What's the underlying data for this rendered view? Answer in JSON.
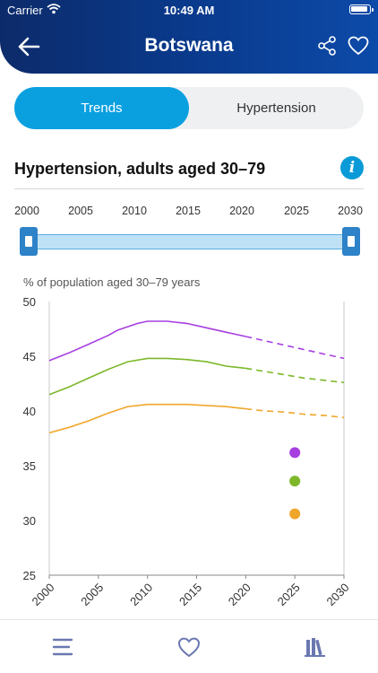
{
  "status_bar": {
    "carrier": "Carrier",
    "time": "10:49 AM"
  },
  "header": {
    "title": "Botswana",
    "back_icon": "arrow-left-icon",
    "share_icon": "share-icon",
    "favorite_icon": "heart-icon"
  },
  "tabs": [
    {
      "label": "Trends",
      "active": true
    },
    {
      "label": "Hypertension",
      "active": false
    }
  ],
  "section": {
    "title": "Hypertension, adults aged 30–79",
    "info_icon": "info-icon",
    "info_label": "i"
  },
  "range_slider": {
    "labels": [
      "2000",
      "2005",
      "2010",
      "2015",
      "2020",
      "2025",
      "2030"
    ],
    "start": 2000,
    "end": 2030
  },
  "chart_data": {
    "type": "line",
    "ylabel": "% of population aged 30–79 years",
    "xlim": [
      2000,
      2030
    ],
    "ylim": [
      25,
      50
    ],
    "x_ticks": [
      2000,
      2005,
      2010,
      2015,
      2020,
      2025,
      2030
    ],
    "y_ticks": [
      25,
      30,
      35,
      40,
      45,
      50
    ],
    "series": [
      {
        "color": "#a63ee0",
        "observed": [
          [
            2000,
            44.6
          ],
          [
            2002,
            45.3
          ],
          [
            2004,
            46.1
          ],
          [
            2006,
            46.9
          ],
          [
            2007,
            47.4
          ],
          [
            2009,
            48.0
          ],
          [
            2010,
            48.2
          ],
          [
            2012,
            48.2
          ],
          [
            2014,
            48.0
          ],
          [
            2016,
            47.6
          ],
          [
            2018,
            47.2
          ],
          [
            2020,
            46.8
          ]
        ],
        "projected": [
          [
            2020,
            46.8
          ],
          [
            2022,
            46.4
          ],
          [
            2024,
            46.0
          ],
          [
            2026,
            45.6
          ],
          [
            2028,
            45.2
          ],
          [
            2030,
            44.8
          ]
        ],
        "target_2025": 36.2
      },
      {
        "color": "#7cb82a",
        "observed": [
          [
            2000,
            41.5
          ],
          [
            2002,
            42.2
          ],
          [
            2004,
            43.0
          ],
          [
            2006,
            43.8
          ],
          [
            2008,
            44.5
          ],
          [
            2010,
            44.8
          ],
          [
            2012,
            44.8
          ],
          [
            2014,
            44.7
          ],
          [
            2016,
            44.5
          ],
          [
            2018,
            44.1
          ],
          [
            2020,
            43.9
          ]
        ],
        "projected": [
          [
            2020,
            43.9
          ],
          [
            2022,
            43.6
          ],
          [
            2024,
            43.3
          ],
          [
            2026,
            43.0
          ],
          [
            2028,
            42.8
          ],
          [
            2030,
            42.6
          ]
        ],
        "target_2025": 33.6
      },
      {
        "color": "#f0a62a",
        "observed": [
          [
            2000,
            38.0
          ],
          [
            2002,
            38.5
          ],
          [
            2004,
            39.1
          ],
          [
            2006,
            39.8
          ],
          [
            2008,
            40.4
          ],
          [
            2010,
            40.6
          ],
          [
            2012,
            40.6
          ],
          [
            2014,
            40.6
          ],
          [
            2016,
            40.5
          ],
          [
            2018,
            40.4
          ],
          [
            2020,
            40.2
          ]
        ],
        "projected": [
          [
            2020,
            40.2
          ],
          [
            2022,
            40.0
          ],
          [
            2024,
            39.9
          ],
          [
            2026,
            39.7
          ],
          [
            2028,
            39.6
          ],
          [
            2030,
            39.4
          ]
        ],
        "target_2025": 30.6
      }
    ]
  },
  "bottom_bar": {
    "items": [
      "menu-icon",
      "favorites-icon",
      "library-icon"
    ]
  },
  "colors": {
    "header": "#0c2b6a",
    "accent": "#0aa0e0",
    "slider": "#2d82c8"
  }
}
